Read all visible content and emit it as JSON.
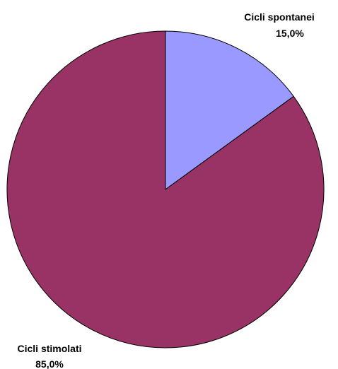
{
  "chart_data": {
    "type": "pie",
    "title": "",
    "start_angle_deg": 0,
    "direction": "clockwise",
    "slices": [
      {
        "label": "Cicli spontanei",
        "value": 15.0,
        "value_label": "15,0%",
        "color": "#9999ff"
      },
      {
        "label": "Cicli stimolati",
        "value": 85.0,
        "value_label": "85,0%",
        "color": "#993366"
      }
    ],
    "slice_border_color": "#000000",
    "legend": "none"
  }
}
